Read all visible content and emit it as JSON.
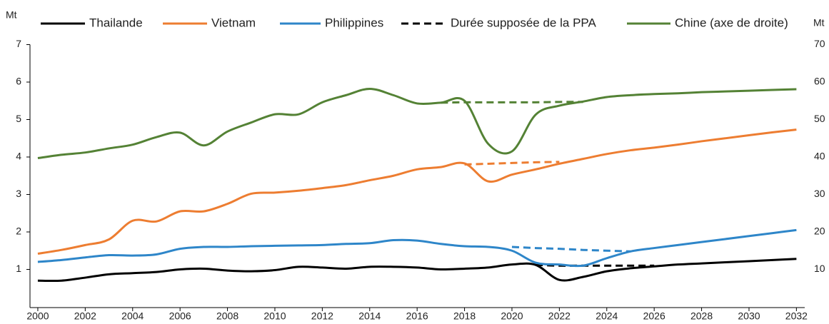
{
  "chart_data": {
    "type": "line",
    "y_label": "Mt",
    "y2_label": "Mt",
    "x": [
      2000,
      2001,
      2002,
      2003,
      2004,
      2005,
      2006,
      2007,
      2008,
      2009,
      2010,
      2011,
      2012,
      2013,
      2014,
      2015,
      2016,
      2017,
      2018,
      2019,
      2020,
      2021,
      2022,
      2023,
      2024,
      2025,
      2026,
      2027,
      2028,
      2029,
      2030,
      2031,
      2032
    ],
    "xlim": [
      1999.67,
      2032.35
    ],
    "xticks": [
      2000,
      2002,
      2004,
      2006,
      2008,
      2010,
      2012,
      2014,
      2016,
      2018,
      2020,
      2022,
      2024,
      2026,
      2028,
      2030,
      2032
    ],
    "ylim": [
      0,
      7
    ],
    "yticks": [
      1,
      2,
      3,
      4,
      5,
      6,
      7
    ],
    "y2lim": [
      0,
      70
    ],
    "y2ticks": [
      10,
      20,
      30,
      40,
      50,
      60,
      70
    ],
    "ppa_legend": {
      "name": "Durée supposée de la PPA",
      "color": "#000000"
    },
    "series": [
      {
        "name": "Thailande",
        "color": "#000000",
        "values": [
          0.7,
          0.7,
          0.78,
          0.87,
          0.9,
          0.93,
          1.0,
          1.02,
          0.97,
          0.95,
          0.98,
          1.07,
          1.05,
          1.02,
          1.07,
          1.07,
          1.05,
          1.0,
          1.02,
          1.05,
          1.13,
          1.12,
          0.72,
          0.8,
          0.95,
          1.03,
          1.08,
          1.13,
          1.16,
          1.19,
          1.22,
          1.25,
          1.28
        ],
        "ppa": [
          null,
          null,
          null,
          null,
          null,
          null,
          null,
          null,
          null,
          null,
          null,
          null,
          null,
          null,
          null,
          null,
          null,
          null,
          null,
          null,
          null,
          1.12,
          1.1,
          1.1,
          1.1,
          1.1,
          1.1,
          null,
          null,
          null,
          null,
          null,
          null
        ]
      },
      {
        "name": "Vietnam",
        "color": "#ed7d31",
        "values": [
          1.42,
          1.52,
          1.65,
          1.8,
          2.3,
          2.28,
          2.55,
          2.55,
          2.75,
          3.02,
          3.05,
          3.1,
          3.17,
          3.25,
          3.38,
          3.5,
          3.67,
          3.73,
          3.83,
          3.35,
          3.53,
          3.67,
          3.82,
          3.95,
          4.08,
          4.18,
          4.25,
          4.33,
          4.42,
          4.5,
          4.58,
          4.66,
          4.73
        ],
        "ppa": [
          null,
          null,
          null,
          null,
          null,
          null,
          null,
          null,
          null,
          null,
          null,
          null,
          null,
          null,
          null,
          null,
          null,
          null,
          3.8,
          3.82,
          3.84,
          3.86,
          3.87,
          null,
          null,
          null,
          null,
          null,
          null,
          null,
          null,
          null,
          null
        ]
      },
      {
        "name": "Philippines",
        "color": "#2e86c9",
        "values": [
          1.2,
          1.25,
          1.32,
          1.38,
          1.37,
          1.4,
          1.55,
          1.6,
          1.6,
          1.62,
          1.63,
          1.64,
          1.65,
          1.68,
          1.7,
          1.78,
          1.77,
          1.68,
          1.62,
          1.6,
          1.5,
          1.18,
          1.13,
          1.1,
          1.3,
          1.48,
          1.57,
          1.65,
          1.73,
          1.81,
          1.89,
          1.97,
          2.05
        ],
        "ppa": [
          null,
          null,
          null,
          null,
          null,
          null,
          null,
          null,
          null,
          null,
          null,
          null,
          null,
          null,
          null,
          null,
          null,
          null,
          null,
          null,
          1.6,
          1.57,
          1.55,
          1.52,
          1.5,
          1.48,
          null,
          null,
          null,
          null,
          null,
          null,
          null
        ]
      },
      {
        "name": "Chine (axe de droite)",
        "color": "#548235",
        "axis": "y2",
        "values": [
          39.7,
          40.6,
          41.2,
          42.3,
          43.3,
          45.3,
          46.5,
          43.1,
          46.8,
          49.2,
          51.4,
          51.4,
          54.6,
          56.5,
          58.2,
          56.5,
          54.3,
          54.5,
          55.0,
          43.5,
          41.5,
          51.3,
          53.7,
          54.8,
          56.0,
          56.5,
          56.8,
          57.0,
          57.3,
          57.5,
          57.7,
          57.9,
          58.1
        ],
        "ppa": [
          null,
          null,
          null,
          null,
          null,
          null,
          null,
          null,
          null,
          null,
          null,
          null,
          null,
          null,
          null,
          null,
          null,
          54.5,
          54.6,
          54.6,
          54.6,
          54.6,
          54.7,
          54.7,
          null,
          null,
          null,
          null,
          null,
          null,
          null,
          null,
          null
        ]
      }
    ]
  }
}
